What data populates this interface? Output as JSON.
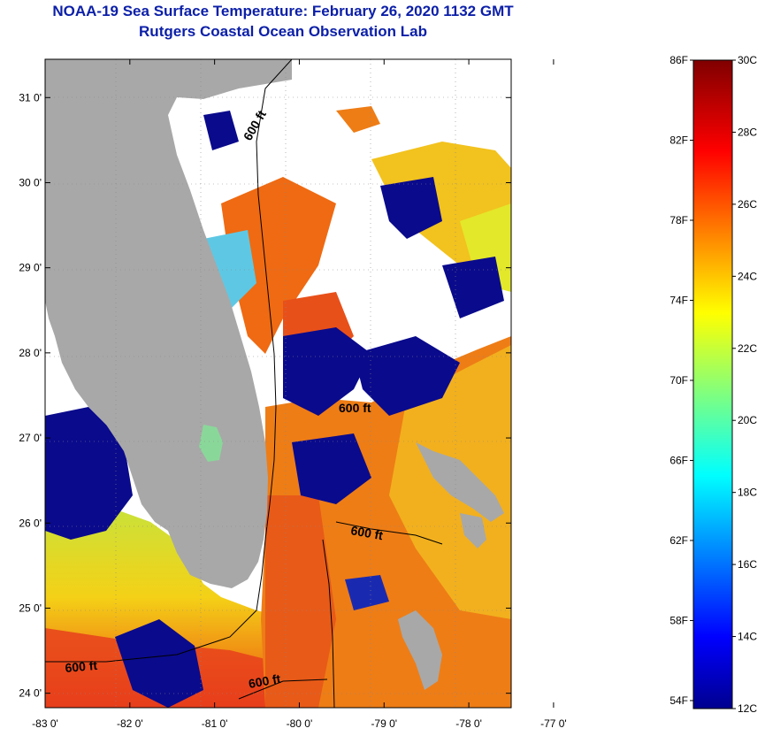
{
  "header": {
    "title": "NOAA-19 Sea Surface Temperature:  February 26, 2020 1132 GMT",
    "subtitle": "Rutgers Coastal Ocean Observation Lab"
  },
  "map": {
    "x_ticks": [
      {
        "value": -83,
        "label": "-83 0'"
      },
      {
        "value": -82,
        "label": "-82 0'"
      },
      {
        "value": -81,
        "label": "-81 0'"
      },
      {
        "value": -80,
        "label": "-80 0'"
      },
      {
        "value": -79,
        "label": "-79 0'"
      },
      {
        "value": -78,
        "label": "-78 0'"
      },
      {
        "value": -77,
        "label": "-77 0'"
      }
    ],
    "y_ticks": [
      {
        "value": 31,
        "label": "31 0'"
      },
      {
        "value": 30,
        "label": "30 0'"
      },
      {
        "value": 29,
        "label": "29 0'"
      },
      {
        "value": 28,
        "label": "28 0'"
      },
      {
        "value": 27,
        "label": "27 0'"
      },
      {
        "value": 26,
        "label": "26 0'"
      },
      {
        "value": 25,
        "label": "25 0'"
      },
      {
        "value": 24,
        "label": "24 0'"
      }
    ],
    "contour_labels": [
      "600 ft",
      "600 ft",
      "600 ft",
      "600 ft",
      "600 ft"
    ],
    "colors": {
      "land": "#a8a8a8",
      "cloud": "#ffffff",
      "cold": "#0a0a8c",
      "warm": "#ef6a12",
      "yellow": "#f2d018"
    }
  },
  "colorbar": {
    "fahrenheit": [
      {
        "value": 86,
        "label": "86F"
      },
      {
        "value": 82,
        "label": "82F"
      },
      {
        "value": 78,
        "label": "78F"
      },
      {
        "value": 74,
        "label": "74F"
      },
      {
        "value": 70,
        "label": "70F"
      },
      {
        "value": 66,
        "label": "66F"
      },
      {
        "value": 62,
        "label": "62F"
      },
      {
        "value": 58,
        "label": "58F"
      },
      {
        "value": 54,
        "label": "54F"
      }
    ],
    "celsius": [
      {
        "value": 30,
        "label": "30C"
      },
      {
        "value": 28,
        "label": "28C"
      },
      {
        "value": 26,
        "label": "26C"
      },
      {
        "value": 24,
        "label": "24C"
      },
      {
        "value": 22,
        "label": "22C"
      },
      {
        "value": 20,
        "label": "20C"
      },
      {
        "value": 18,
        "label": "18C"
      },
      {
        "value": 16,
        "label": "16C"
      },
      {
        "value": 14,
        "label": "14C"
      },
      {
        "value": 12,
        "label": "12C"
      }
    ]
  }
}
